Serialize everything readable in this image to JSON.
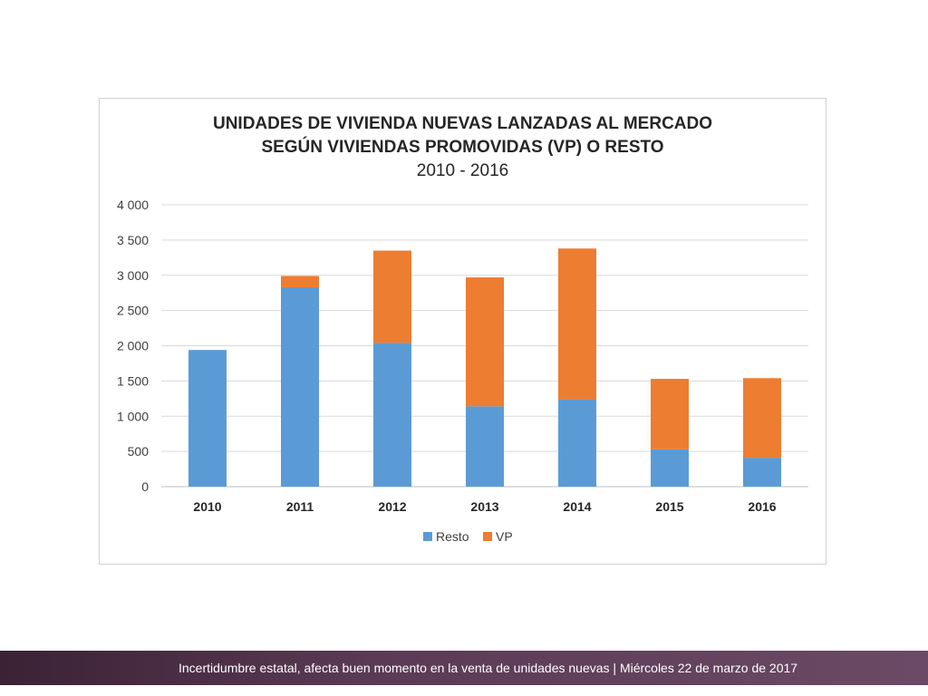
{
  "chart_data": {
    "type": "bar",
    "stacked": true,
    "title": "UNIDADES DE VIVIENDA NUEVAS LANZADAS AL MERCADO",
    "subtitle": "SEGÚN VIVIENDAS PROMOVIDAS (VP) O RESTO",
    "period": "2010 - 2016",
    "categories": [
      "2010",
      "2011",
      "2012",
      "2013",
      "2014",
      "2015",
      "2016"
    ],
    "series": [
      {
        "name": "Resto",
        "color": "#5b9bd5",
        "values": [
          1940,
          2830,
          2040,
          1140,
          1240,
          530,
          410
        ]
      },
      {
        "name": "VP",
        "color": "#ed7d31",
        "values": [
          0,
          160,
          1310,
          1830,
          2140,
          1000,
          1130
        ]
      }
    ],
    "ylim": [
      0,
      4000
    ],
    "yticks": [
      0,
      500,
      1000,
      1500,
      2000,
      2500,
      3000,
      3500,
      4000
    ],
    "ytick_labels": [
      "0",
      "500",
      "1 000",
      "1 500",
      "2 000",
      "2 500",
      "3 000",
      "3 500",
      "4 000"
    ],
    "grid": true,
    "legend_position": "bottom"
  },
  "footer": {
    "text": "Incertidumbre estatal, afecta buen momento en la venta de unidades nuevas | Miércoles 22 de marzo de 2017"
  }
}
